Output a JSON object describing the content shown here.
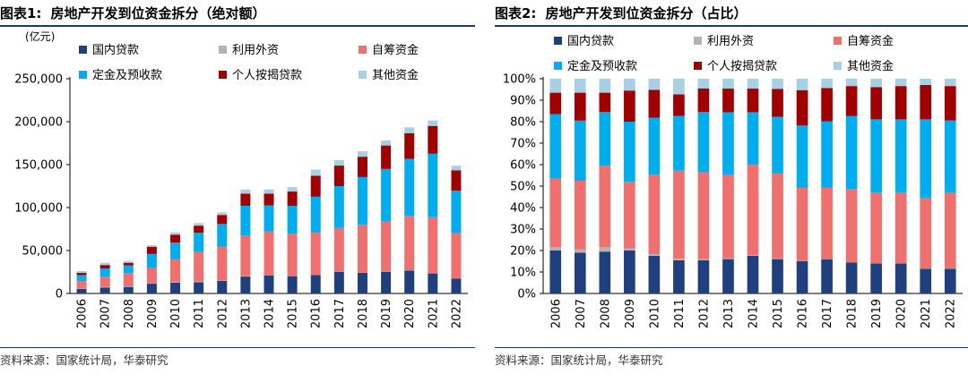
{
  "charts": [
    {
      "title_prefix": "图表1:",
      "title": "房地产开发到位资金拆分（绝对额）",
      "source": "资料来源：国家统计局，华泰研究"
    },
    {
      "title_prefix": "图表2:",
      "title": "房地产开发到位资金拆分（占比）",
      "source": "资料来源：国家统计局，华泰研究"
    }
  ],
  "chart_data": [
    {
      "type": "bar",
      "stacked": true,
      "unit_label": "(亿元)",
      "categories": [
        "2006",
        "2007",
        "2008",
        "2009",
        "2010",
        "2011",
        "2012",
        "2013",
        "2014",
        "2015",
        "2016",
        "2017",
        "2018",
        "2019",
        "2020",
        "2021",
        "2022"
      ],
      "ylim": [
        0,
        250000
      ],
      "yticks": [
        0,
        50000,
        100000,
        150000,
        200000,
        250000
      ],
      "ytick_labels": [
        "0",
        "50,000",
        "100,000",
        "150,000",
        "200,000",
        "250,000"
      ],
      "grid": false,
      "legend_position": "top",
      "series": [
        {
          "name": "国内贷款",
          "color": "#1f3f7f",
          "values": [
            5400,
            7000,
            7600,
            11400,
            12600,
            13100,
            14800,
            19700,
            21200,
            20200,
            21500,
            25200,
            24000,
            25200,
            26700,
            23300,
            17400
          ]
        },
        {
          "name": "利用外资",
          "color": "#b3b3b3",
          "values": [
            400,
            640,
            730,
            480,
            790,
            790,
            400,
            530,
            640,
            300,
            140,
            170,
            110,
            180,
            190,
            110,
            80
          ]
        },
        {
          "name": "自筹资金",
          "color": "#f07070",
          "values": [
            8600,
            11800,
            15300,
            17900,
            26700,
            35100,
            39100,
            47400,
            50400,
            49000,
            49100,
            50900,
            56000,
            58200,
            63400,
            65400,
            52900
          ]
        },
        {
          "name": "定金及预收款",
          "color": "#00aeef",
          "values": [
            7000,
            9600,
            9100,
            16200,
            19200,
            21600,
            26600,
            34500,
            30200,
            32500,
            41900,
            48700,
            55400,
            61400,
            66500,
            73900,
            49300
          ]
        },
        {
          "name": "个人按揭贷款",
          "color": "#a00000",
          "values": [
            2700,
            4100,
            3000,
            8400,
            9200,
            8400,
            10500,
            14000,
            13700,
            16700,
            24400,
            23900,
            23700,
            27300,
            29900,
            32400,
            23800
          ]
        },
        {
          "name": "其他资金",
          "color": "#a8d0e4",
          "values": [
            1900,
            2700,
            2100,
            1800,
            2600,
            2900,
            3000,
            4800,
            5000,
            5100,
            7100,
            6400,
            6300,
            5800,
            6700,
            6300,
            5200
          ]
        }
      ]
    },
    {
      "type": "bar",
      "stacked": true,
      "categories": [
        "2006",
        "2007",
        "2008",
        "2009",
        "2010",
        "2011",
        "2012",
        "2013",
        "2014",
        "2015",
        "2016",
        "2017",
        "2018",
        "2019",
        "2020",
        "2021",
        "2022"
      ],
      "ylim": [
        0,
        100
      ],
      "yticks": [
        0,
        10,
        20,
        30,
        40,
        50,
        60,
        70,
        80,
        90,
        100
      ],
      "ytick_labels": [
        "0%",
        "10%",
        "20%",
        "30%",
        "40%",
        "50%",
        "60%",
        "70%",
        "80%",
        "90%",
        "100%"
      ],
      "grid": false,
      "legend_position": "top",
      "series": [
        {
          "name": "国内贷款",
          "color": "#1f3f7f",
          "values": [
            20,
            19,
            19.5,
            20,
            17.5,
            15.5,
            15.5,
            16,
            17.5,
            16,
            15,
            16,
            14.5,
            14,
            14,
            11.5,
            11.5
          ]
        },
        {
          "name": "利用外资",
          "color": "#b3b3b3",
          "values": [
            1.5,
            1.5,
            2,
            1,
            0.8,
            0.7,
            0.5,
            0.4,
            0.4,
            0.3,
            0.2,
            0.2,
            0.1,
            0.1,
            0.1,
            0.1,
            0.1
          ]
        },
        {
          "name": "自筹资金",
          "color": "#f07070",
          "values": [
            32,
            32,
            38,
            31,
            37,
            41,
            40.5,
            39,
            42,
            39.5,
            34,
            33,
            34,
            33,
            33,
            33,
            35.5
          ]
        },
        {
          "name": "定金及预收款",
          "color": "#00aeef",
          "values": [
            30,
            28,
            25,
            28,
            26.5,
            25.5,
            28,
            29,
            24.5,
            26.5,
            29,
            31,
            34,
            34,
            34,
            36.5,
            33.5
          ]
        },
        {
          "name": "个人按揭贷款",
          "color": "#a00000",
          "values": [
            10,
            13,
            9,
            14.5,
            13,
            10,
            11,
            11,
            11,
            13,
            16.5,
            15.5,
            14,
            15,
            15.5,
            16,
            16
          ]
        },
        {
          "name": "其他资金",
          "color": "#a8d0e4",
          "values": [
            6.5,
            6.5,
            6.5,
            5.5,
            5.2,
            7.3,
            4.5,
            4.6,
            4.6,
            4.7,
            5.3,
            4.3,
            3.4,
            3.9,
            3.4,
            2.9,
            3.4
          ]
        }
      ]
    }
  ]
}
